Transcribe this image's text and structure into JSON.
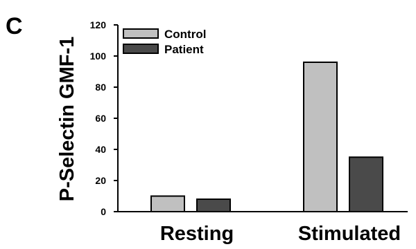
{
  "panel_label": "C",
  "chart_data": {
    "type": "bar",
    "title": "",
    "ylabel": "P-Selectin GMF-1",
    "xlabel": "",
    "categories": [
      "Resting",
      "Stimulated"
    ],
    "ylim": [
      0,
      120
    ],
    "yticks": [
      0,
      20,
      40,
      60,
      80,
      100,
      120
    ],
    "grid": false,
    "legend_position": "top-left",
    "series": [
      {
        "name": "Control",
        "values": [
          10,
          96
        ],
        "color": "#c0c0c0"
      },
      {
        "name": "Patient",
        "values": [
          8,
          35
        ],
        "color": "#4a4a4a"
      }
    ]
  }
}
